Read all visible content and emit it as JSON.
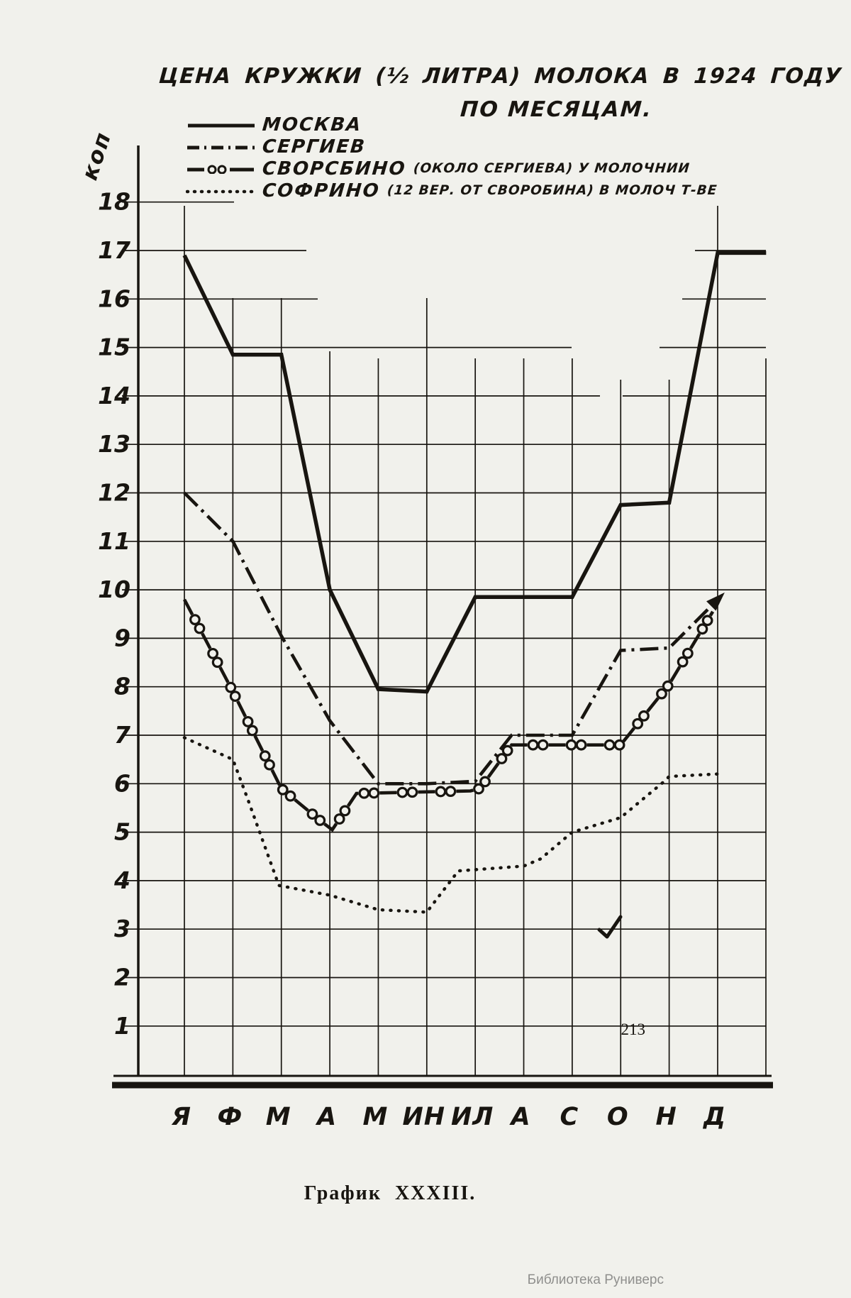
{
  "page": {
    "title_line1": "ЦЕНА КРУЖКИ (½ ЛИТРА) МОЛОКА В 1924 ГОДУ",
    "title_line2": "ПО МЕСЯЦАМ.",
    "y_axis_unit": "коп",
    "caption": "График XXXIII.",
    "page_number": "213",
    "watermark": "Библиотека Руниверс"
  },
  "legend": [
    {
      "label": "МОСКВА",
      "note": "",
      "style": "solid"
    },
    {
      "label": "СЕРГИЕВ",
      "note": "",
      "style": "dashdot"
    },
    {
      "label": "СВОРСБИНО",
      "note": "(ОКОЛО СЕРГИЕВА) У МОЛОЧНИИ",
      "style": "dashcircle"
    },
    {
      "label": "СОФРИНО",
      "note": "(12 ВЕР. ОТ СВОРОБИНА) В МОЛОЧ Т-ВЕ",
      "style": "dotted"
    }
  ],
  "chart_data": {
    "type": "line",
    "title": "Цена кружки (1/2 литра) молока в 1924 году по месяцам",
    "y_unit": "коп",
    "ylim": [
      0,
      18
    ],
    "y_ticks": [
      18,
      17,
      16,
      15,
      14,
      13,
      12,
      11,
      10,
      9,
      8,
      7,
      6,
      5,
      4,
      3,
      2,
      1
    ],
    "x_categories": [
      "Я",
      "Ф",
      "М",
      "А",
      "М",
      "ИН",
      "ИЛ",
      "А",
      "С",
      "О",
      "Н",
      "Д"
    ],
    "grid": true,
    "legend_position": "top-left",
    "series": [
      {
        "name": "МОСКВА",
        "style": "solid",
        "monthly_values": [
          16.9,
          14.85,
          14.85,
          10.0,
          7.95,
          7.9,
          9.85,
          9.85,
          9.85,
          11.75,
          11.8,
          16.95
        ],
        "points": [
          [
            0,
            16.9
          ],
          [
            1,
            14.85
          ],
          [
            2,
            14.85
          ],
          [
            3,
            10.0
          ],
          [
            4,
            7.95
          ],
          [
            5,
            7.9
          ],
          [
            6,
            9.85
          ],
          [
            8,
            9.85
          ],
          [
            9,
            11.75
          ],
          [
            10,
            11.8
          ],
          [
            11,
            16.95
          ],
          [
            12,
            16.95
          ]
        ],
        "arrow_end": false
      },
      {
        "name": "СЕРГИЕВ",
        "style": "dashdot",
        "monthly_values": [
          12.0,
          11.0,
          9.05,
          7.3,
          6.0,
          6.0,
          6.05,
          7.0,
          7.0,
          8.75,
          8.8,
          9.8
        ],
        "points": [
          [
            0,
            12.0
          ],
          [
            1,
            11.0
          ],
          [
            2,
            9.05
          ],
          [
            3,
            7.3
          ],
          [
            4,
            6.0
          ],
          [
            5,
            6.0
          ],
          [
            6,
            6.05
          ],
          [
            6.75,
            7.0
          ],
          [
            8,
            7.0
          ],
          [
            9,
            8.75
          ],
          [
            10,
            8.8
          ],
          [
            11,
            9.8
          ]
        ],
        "arrow_end": true
      },
      {
        "name": "СВОРСБИНО",
        "style": "dashcircle",
        "monthly_values": [
          9.8,
          7.9,
          5.9,
          5.1,
          5.8,
          5.85,
          5.9,
          6.8,
          6.8,
          6.8,
          8.05,
          9.6
        ],
        "points": [
          [
            0,
            9.8
          ],
          [
            1,
            7.9
          ],
          [
            2,
            5.9
          ],
          [
            2.85,
            5.2
          ],
          [
            3.05,
            5.05
          ],
          [
            3.55,
            5.8
          ],
          [
            5.9,
            5.85
          ],
          [
            6.1,
            5.9
          ],
          [
            6.75,
            6.8
          ],
          [
            9,
            6.8
          ],
          [
            10,
            8.05
          ],
          [
            10.9,
            9.55
          ]
        ],
        "arrow_end": false
      },
      {
        "name": "СОФРИНО",
        "style": "dotted",
        "monthly_values": [
          6.95,
          6.5,
          3.9,
          3.7,
          3.4,
          3.35,
          4.2,
          4.3,
          5.0,
          5.3,
          6.05,
          6.2
        ],
        "points": [
          [
            0,
            6.95
          ],
          [
            1,
            6.5
          ],
          [
            1.3,
            5.7
          ],
          [
            1.95,
            3.9
          ],
          [
            3,
            3.7
          ],
          [
            4,
            3.4
          ],
          [
            5,
            3.35
          ],
          [
            5.65,
            4.2
          ],
          [
            7,
            4.3
          ],
          [
            7.35,
            4.45
          ],
          [
            8,
            5.0
          ],
          [
            9,
            5.3
          ],
          [
            9.9,
            6.05
          ],
          [
            10,
            6.15
          ],
          [
            11,
            6.2
          ]
        ],
        "arrow_end": false
      }
    ]
  }
}
